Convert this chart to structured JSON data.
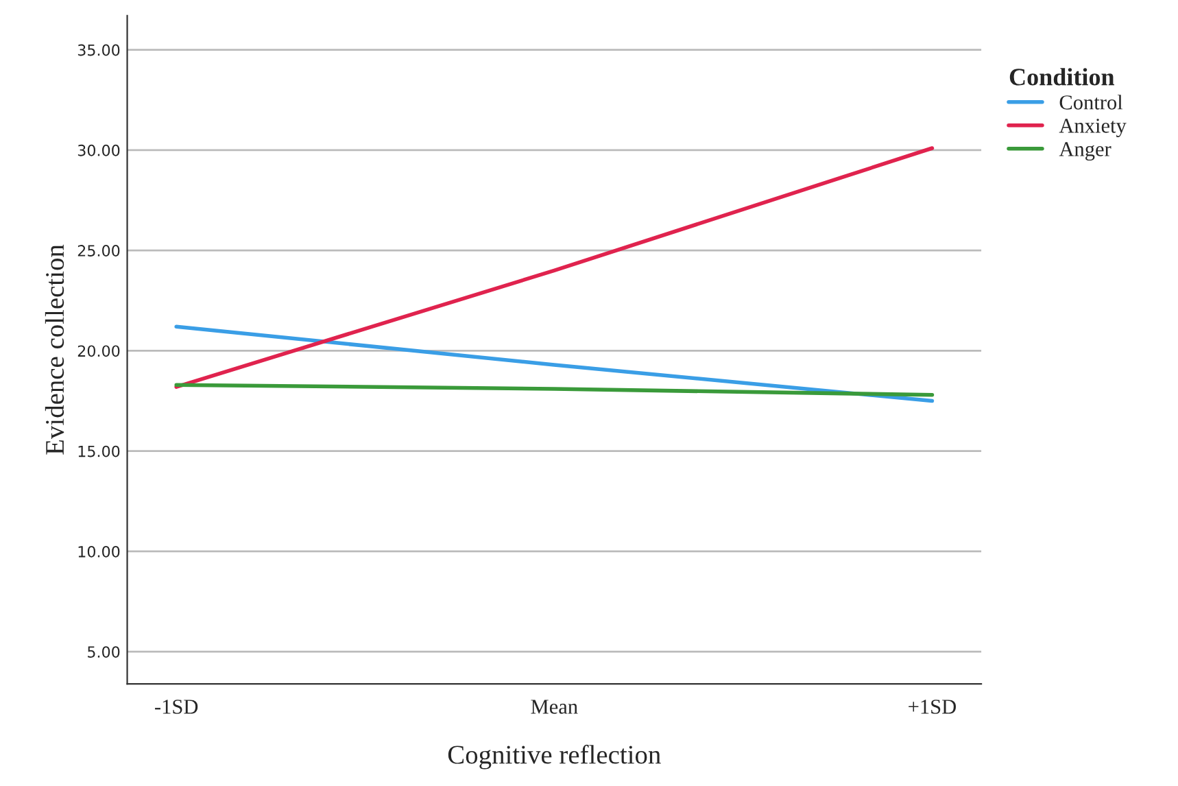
{
  "chart_data": {
    "type": "line",
    "xlabel": "Cognitive reflection",
    "ylabel": "Evidence collection",
    "legend_title": "Condition",
    "categories": [
      "-1SD",
      "Mean",
      "+1SD"
    ],
    "series": [
      {
        "name": "Control",
        "color": "#3a9ee6",
        "values": [
          21.2,
          19.3,
          17.5
        ]
      },
      {
        "name": "Anxiety",
        "color": "#e0234e",
        "values": [
          18.2,
          24.0,
          30.1
        ]
      },
      {
        "name": "Anger",
        "color": "#3a9a3a",
        "values": [
          18.3,
          18.1,
          17.8
        ]
      }
    ],
    "ylim": [
      3.4,
      36.7
    ],
    "yticks": [
      {
        "value": 5,
        "label": "5.00"
      },
      {
        "value": 10,
        "label": "10.00"
      },
      {
        "value": 15,
        "label": "15.00"
      },
      {
        "value": 20,
        "label": "20.00"
      },
      {
        "value": 25,
        "label": "25.00"
      },
      {
        "value": 30,
        "label": "30.00"
      },
      {
        "value": 35,
        "label": "35.00"
      }
    ],
    "grid": "y",
    "legend": "right",
    "marker": "none",
    "line_style": "solid"
  }
}
